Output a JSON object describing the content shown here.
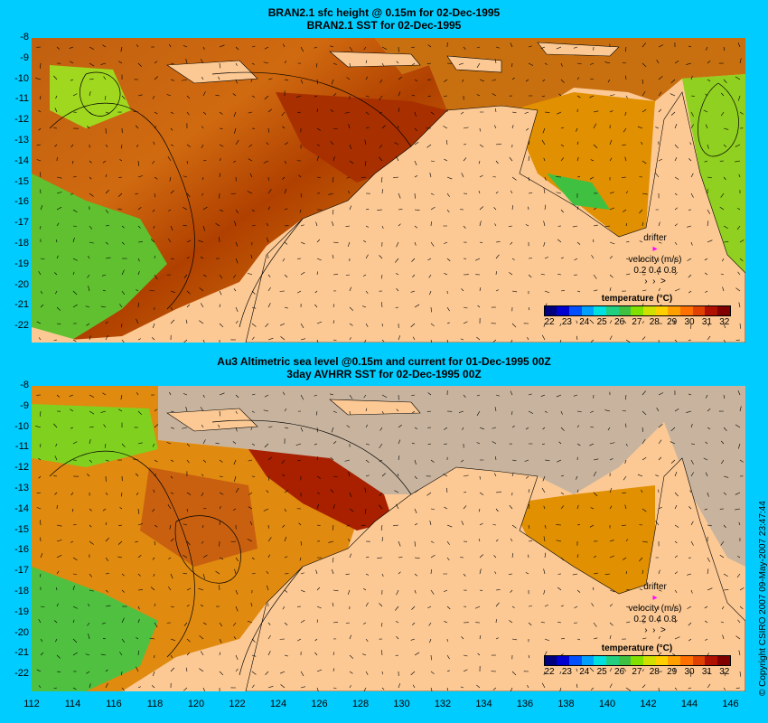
{
  "top_panel": {
    "title_line1": "BRAN2.1 sfc height @ 0.15m for 02-Dec-1995",
    "title_line2": "BRAN2.1  SST for 02-Dec-1995",
    "legend_title": "temperature (°C)",
    "drifter_label": "drifter",
    "velocity_label": "velocity (m/s)",
    "velocity_values": "0.2 0.4 0.8"
  },
  "bottom_panel": {
    "title_line1": "Au3 Altimetric sea level  @0.15m and current for 01-Dec-1995 00Z",
    "title_line2": "3day AVHRR SST for 02-Dec-1995 00Z",
    "legend_title": "temperature (°C)",
    "drifter_label": "drifter",
    "velocity_label": "velocity (m/s)",
    "velocity_values": "0.2 0.4 0.8"
  },
  "y_ticks": [
    "-8",
    "-9",
    "-10",
    "-11",
    "-12",
    "-13",
    "-14",
    "-15",
    "-16",
    "-17",
    "-18",
    "-19",
    "-20",
    "-21",
    "-22"
  ],
  "x_ticks": [
    "112",
    "114",
    "116",
    "118",
    "120",
    "122",
    "124",
    "126",
    "128",
    "130",
    "132",
    "134",
    "136",
    "138",
    "140",
    "142",
    "144",
    "146"
  ],
  "colorbar_ticks": [
    "22",
    "23",
    "24",
    "25",
    "26",
    "27",
    "28",
    "29",
    "30",
    "31",
    "32"
  ],
  "colorbar_colors": [
    "#00007f",
    "#0000d0",
    "#0050ff",
    "#00a0ff",
    "#00e0e0",
    "#20d080",
    "#40c040",
    "#80e000",
    "#d0e000",
    "#ffd000",
    "#ffa000",
    "#ff7000",
    "#e04000",
    "#b01000",
    "#800000"
  ],
  "copyright": "© Copyright CSIRO 2007  09-May-2007 23:47:44",
  "colors": {
    "land": "#fcc994",
    "background": "#00ccff",
    "cloud": "#c8b49e",
    "drifter": "#ff00ff"
  }
}
